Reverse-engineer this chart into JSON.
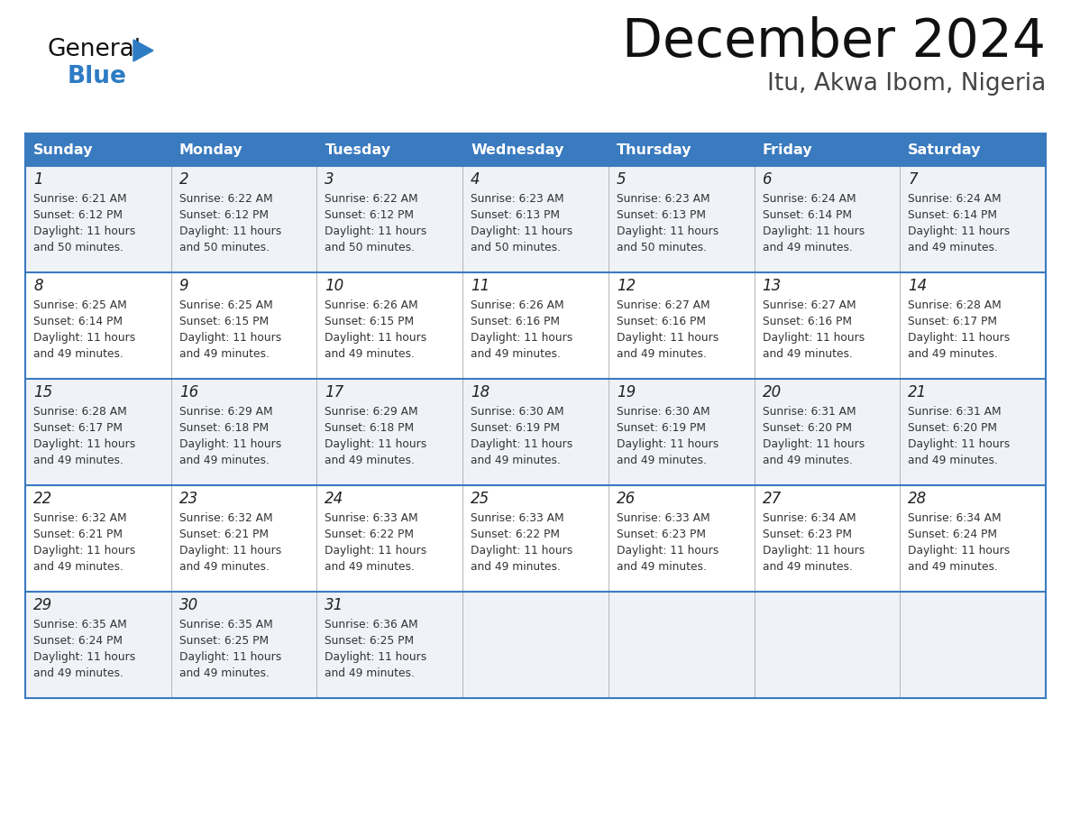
{
  "title": "December 2024",
  "subtitle": "Itu, Akwa Ibom, Nigeria",
  "days_of_week": [
    "Sunday",
    "Monday",
    "Tuesday",
    "Wednesday",
    "Thursday",
    "Friday",
    "Saturday"
  ],
  "header_bg": "#3a7abf",
  "header_text": "#ffffff",
  "cell_bg_light": "#eff3f8",
  "cell_bg_white": "#ffffff",
  "cell_border_color": "#3a7abf",
  "cell_divider_color": "#aaaaaa",
  "day_num_color": "#222222",
  "cell_text_color": "#333333",
  "title_color": "#111111",
  "subtitle_color": "#444444",
  "logo_general_color": "#111111",
  "logo_blue_color": "#2d7cc4",
  "calendar_data": [
    [
      {
        "day": "1",
        "sunrise": "6:21 AM",
        "sunset": "6:12 PM",
        "daylight_h": "11 hours",
        "daylight_m": "and 50 minutes."
      },
      {
        "day": "2",
        "sunrise": "6:22 AM",
        "sunset": "6:12 PM",
        "daylight_h": "11 hours",
        "daylight_m": "and 50 minutes."
      },
      {
        "day": "3",
        "sunrise": "6:22 AM",
        "sunset": "6:12 PM",
        "daylight_h": "11 hours",
        "daylight_m": "and 50 minutes."
      },
      {
        "day": "4",
        "sunrise": "6:23 AM",
        "sunset": "6:13 PM",
        "daylight_h": "11 hours",
        "daylight_m": "and 50 minutes."
      },
      {
        "day": "5",
        "sunrise": "6:23 AM",
        "sunset": "6:13 PM",
        "daylight_h": "11 hours",
        "daylight_m": "and 50 minutes."
      },
      {
        "day": "6",
        "sunrise": "6:24 AM",
        "sunset": "6:14 PM",
        "daylight_h": "11 hours",
        "daylight_m": "and 49 minutes."
      },
      {
        "day": "7",
        "sunrise": "6:24 AM",
        "sunset": "6:14 PM",
        "daylight_h": "11 hours",
        "daylight_m": "and 49 minutes."
      }
    ],
    [
      {
        "day": "8",
        "sunrise": "6:25 AM",
        "sunset": "6:14 PM",
        "daylight_h": "11 hours",
        "daylight_m": "and 49 minutes."
      },
      {
        "day": "9",
        "sunrise": "6:25 AM",
        "sunset": "6:15 PM",
        "daylight_h": "11 hours",
        "daylight_m": "and 49 minutes."
      },
      {
        "day": "10",
        "sunrise": "6:26 AM",
        "sunset": "6:15 PM",
        "daylight_h": "11 hours",
        "daylight_m": "and 49 minutes."
      },
      {
        "day": "11",
        "sunrise": "6:26 AM",
        "sunset": "6:16 PM",
        "daylight_h": "11 hours",
        "daylight_m": "and 49 minutes."
      },
      {
        "day": "12",
        "sunrise": "6:27 AM",
        "sunset": "6:16 PM",
        "daylight_h": "11 hours",
        "daylight_m": "and 49 minutes."
      },
      {
        "day": "13",
        "sunrise": "6:27 AM",
        "sunset": "6:16 PM",
        "daylight_h": "11 hours",
        "daylight_m": "and 49 minutes."
      },
      {
        "day": "14",
        "sunrise": "6:28 AM",
        "sunset": "6:17 PM",
        "daylight_h": "11 hours",
        "daylight_m": "and 49 minutes."
      }
    ],
    [
      {
        "day": "15",
        "sunrise": "6:28 AM",
        "sunset": "6:17 PM",
        "daylight_h": "11 hours",
        "daylight_m": "and 49 minutes."
      },
      {
        "day": "16",
        "sunrise": "6:29 AM",
        "sunset": "6:18 PM",
        "daylight_h": "11 hours",
        "daylight_m": "and 49 minutes."
      },
      {
        "day": "17",
        "sunrise": "6:29 AM",
        "sunset": "6:18 PM",
        "daylight_h": "11 hours",
        "daylight_m": "and 49 minutes."
      },
      {
        "day": "18",
        "sunrise": "6:30 AM",
        "sunset": "6:19 PM",
        "daylight_h": "11 hours",
        "daylight_m": "and 49 minutes."
      },
      {
        "day": "19",
        "sunrise": "6:30 AM",
        "sunset": "6:19 PM",
        "daylight_h": "11 hours",
        "daylight_m": "and 49 minutes."
      },
      {
        "day": "20",
        "sunrise": "6:31 AM",
        "sunset": "6:20 PM",
        "daylight_h": "11 hours",
        "daylight_m": "and 49 minutes."
      },
      {
        "day": "21",
        "sunrise": "6:31 AM",
        "sunset": "6:20 PM",
        "daylight_h": "11 hours",
        "daylight_m": "and 49 minutes."
      }
    ],
    [
      {
        "day": "22",
        "sunrise": "6:32 AM",
        "sunset": "6:21 PM",
        "daylight_h": "11 hours",
        "daylight_m": "and 49 minutes."
      },
      {
        "day": "23",
        "sunrise": "6:32 AM",
        "sunset": "6:21 PM",
        "daylight_h": "11 hours",
        "daylight_m": "and 49 minutes."
      },
      {
        "day": "24",
        "sunrise": "6:33 AM",
        "sunset": "6:22 PM",
        "daylight_h": "11 hours",
        "daylight_m": "and 49 minutes."
      },
      {
        "day": "25",
        "sunrise": "6:33 AM",
        "sunset": "6:22 PM",
        "daylight_h": "11 hours",
        "daylight_m": "and 49 minutes."
      },
      {
        "day": "26",
        "sunrise": "6:33 AM",
        "sunset": "6:23 PM",
        "daylight_h": "11 hours",
        "daylight_m": "and 49 minutes."
      },
      {
        "day": "27",
        "sunrise": "6:34 AM",
        "sunset": "6:23 PM",
        "daylight_h": "11 hours",
        "daylight_m": "and 49 minutes."
      },
      {
        "day": "28",
        "sunrise": "6:34 AM",
        "sunset": "6:24 PM",
        "daylight_h": "11 hours",
        "daylight_m": "and 49 minutes."
      }
    ],
    [
      {
        "day": "29",
        "sunrise": "6:35 AM",
        "sunset": "6:24 PM",
        "daylight_h": "11 hours",
        "daylight_m": "and 49 minutes."
      },
      {
        "day": "30",
        "sunrise": "6:35 AM",
        "sunset": "6:25 PM",
        "daylight_h": "11 hours",
        "daylight_m": "and 49 minutes."
      },
      {
        "day": "31",
        "sunrise": "6:36 AM",
        "sunset": "6:25 PM",
        "daylight_h": "11 hours",
        "daylight_m": "and 49 minutes."
      },
      null,
      null,
      null,
      null
    ]
  ]
}
